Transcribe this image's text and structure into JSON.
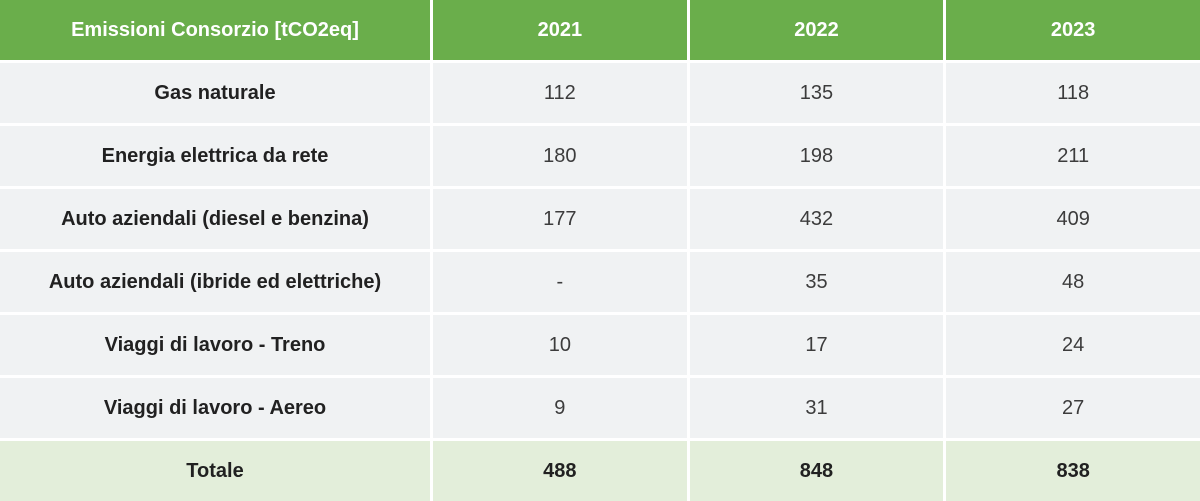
{
  "table": {
    "header": {
      "title": "Emissioni Consorzio [tCO2eq]",
      "col1": "2021",
      "col2": "2022",
      "col3": "2023"
    },
    "rows": [
      {
        "label": "Gas naturale",
        "values": [
          "112",
          "135",
          "118"
        ]
      },
      {
        "label": "Energia elettrica da rete",
        "values": [
          "180",
          "198",
          "211"
        ]
      },
      {
        "label": "Auto aziendali (diesel e benzina)",
        "values": [
          "177",
          "432",
          "409"
        ]
      },
      {
        "label": "Auto aziendali (ibride ed elettriche)",
        "values": [
          "-",
          "35",
          "48"
        ]
      },
      {
        "label": "Viaggi di lavoro - Treno",
        "values": [
          "10",
          "17",
          "24"
        ]
      },
      {
        "label": "Viaggi di lavoro - Aereo",
        "values": [
          "9",
          "31",
          "27"
        ]
      }
    ],
    "total": {
      "label": "Totale",
      "values": [
        "488",
        "848",
        "838"
      ]
    }
  },
  "chart_data": {
    "type": "table",
    "title": "Emissioni Consorzio [tCO2eq]",
    "columns": [
      "Emissioni Consorzio [tCO2eq]",
      "2021",
      "2022",
      "2023"
    ],
    "categories": [
      "Gas naturale",
      "Energia elettrica da rete",
      "Auto aziendali (diesel e benzina)",
      "Auto aziendali (ibride ed elettriche)",
      "Viaggi di lavoro - Treno",
      "Viaggi di lavoro - Aereo",
      "Totale"
    ],
    "series": [
      {
        "name": "2021",
        "values": [
          112,
          180,
          177,
          null,
          10,
          9,
          488
        ]
      },
      {
        "name": "2022",
        "values": [
          135,
          198,
          432,
          35,
          17,
          31,
          848
        ]
      },
      {
        "name": "2023",
        "values": [
          118,
          211,
          409,
          48,
          24,
          27,
          838
        ]
      }
    ],
    "missing_value_display": "-"
  },
  "colors": {
    "header_bg": "#6aae4b",
    "header_text": "#ffffff",
    "row_bg": "#f0f2f3",
    "total_bg": "#e3eeda",
    "label_text": "#212121",
    "value_text": "#3c3c3c",
    "gap_color": "#ffffff"
  }
}
